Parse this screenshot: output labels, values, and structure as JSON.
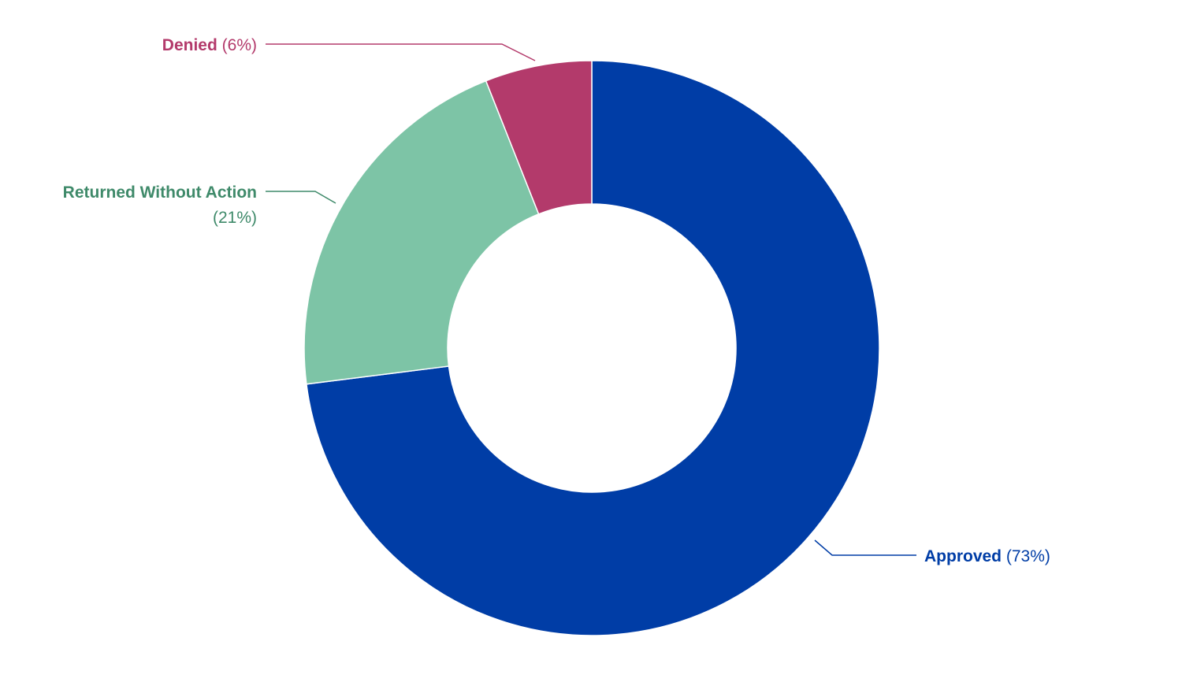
{
  "chart_data": {
    "type": "pie",
    "donut": true,
    "slices": [
      {
        "name": "Approved",
        "value": 73,
        "pct_label": "(73%)",
        "color": "#003da6"
      },
      {
        "name": "Returned Without Action",
        "value": 21,
        "pct_label": "(21%)",
        "color": "#7dc4a6"
      },
      {
        "name": "Denied",
        "value": 6,
        "pct_label": "(6%)",
        "color": "#b33a6b"
      }
    ],
    "label_colors": {
      "Approved": "#003da6",
      "Returned Without Action": "#3f8a6a",
      "Denied": "#b33a6b"
    },
    "legend": "none"
  }
}
